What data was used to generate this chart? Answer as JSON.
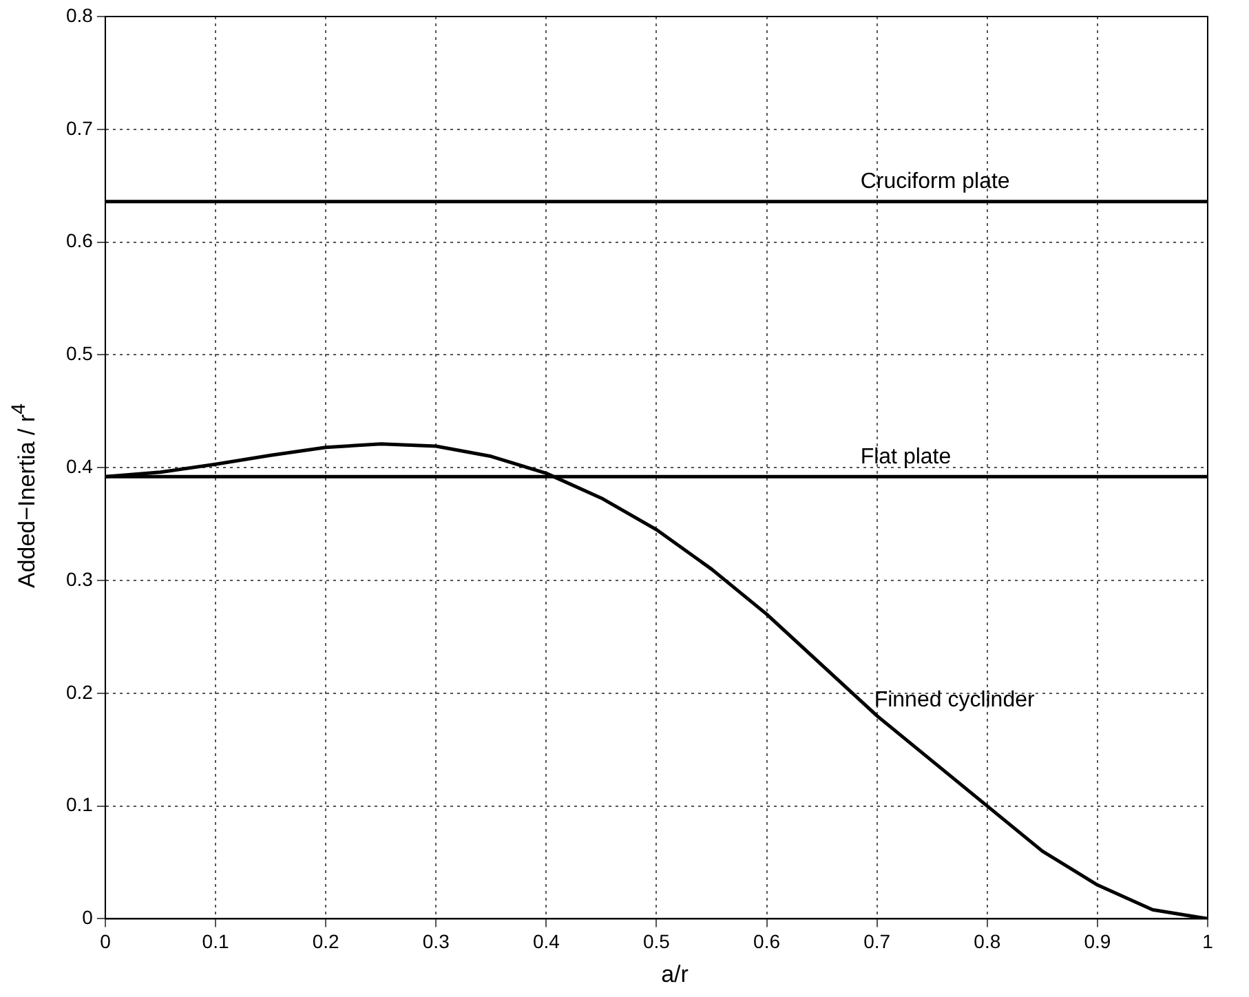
{
  "chart_data": {
    "type": "line",
    "xlabel": "a/r",
    "ylabel": "Added−Inertia / r$^{4}$",
    "xlim": [
      0,
      1
    ],
    "ylim": [
      0,
      0.8
    ],
    "xticks": [
      0,
      0.1,
      0.2,
      0.3,
      0.4,
      0.5,
      0.6,
      0.7,
      0.8,
      0.9,
      1
    ],
    "yticks": [
      0,
      0.1,
      0.2,
      0.3,
      0.4,
      0.5,
      0.6,
      0.7,
      0.8
    ],
    "grid": true,
    "legend": false,
    "marker": "none",
    "line_style": "solid",
    "series": [
      {
        "name": "Cruciform plate",
        "color": "#000000",
        "x": [
          0,
          1
        ],
        "values": [
          0.636,
          0.636
        ]
      },
      {
        "name": "Flat plate",
        "color": "#000000",
        "x": [
          0,
          1
        ],
        "values": [
          0.392,
          0.392
        ]
      },
      {
        "name": "Finned cyclinder",
        "color": "#000000",
        "x": [
          0,
          0.05,
          0.1,
          0.15,
          0.2,
          0.25,
          0.3,
          0.35,
          0.4,
          0.45,
          0.5,
          0.55,
          0.6,
          0.65,
          0.7,
          0.75,
          0.8,
          0.85,
          0.9,
          0.95,
          1
        ],
        "values": [
          0.392,
          0.396,
          0.403,
          0.411,
          0.418,
          0.421,
          0.419,
          0.41,
          0.395,
          0.373,
          0.345,
          0.31,
          0.27,
          0.225,
          0.18,
          0.14,
          0.1,
          0.06,
          0.03,
          0.008,
          0
        ]
      }
    ]
  }
}
